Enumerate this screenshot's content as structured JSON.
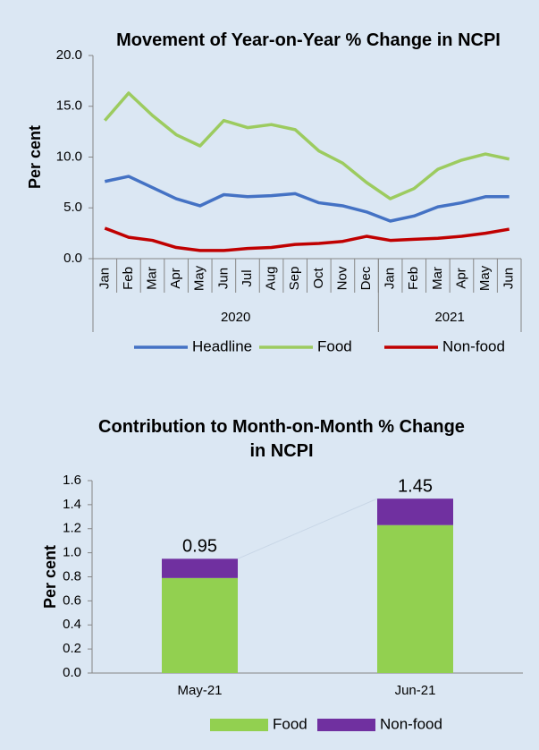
{
  "chart_data": [
    {
      "type": "line",
      "title": "Movement of Year-on-Year % Change in NCPI",
      "y_label": "Per cent",
      "categories": [
        "Jan",
        "Feb",
        "Mar",
        "Apr",
        "May",
        "Jun",
        "Jul",
        "Aug",
        "Sep",
        "Oct",
        "Nov",
        "Dec",
        "Jan",
        "Feb",
        "Mar",
        "Apr",
        "May",
        "Jun"
      ],
      "category_groups": [
        {
          "label": "2020",
          "size": 12
        },
        {
          "label": "2021",
          "size": 6
        }
      ],
      "series": [
        {
          "name": "Headline",
          "color": "#4472c4",
          "values": [
            7.6,
            8.1,
            7.0,
            5.9,
            5.2,
            6.3,
            6.1,
            6.2,
            6.4,
            5.5,
            5.2,
            4.6,
            3.7,
            4.2,
            5.1,
            5.5,
            6.1,
            6.1
          ]
        },
        {
          "name": "Food",
          "color": "#9ccb5f",
          "values": [
            13.6,
            16.3,
            14.1,
            12.2,
            11.1,
            13.6,
            12.9,
            13.2,
            12.7,
            10.6,
            9.4,
            7.5,
            5.9,
            6.9,
            8.8,
            9.7,
            10.3,
            9.8
          ]
        },
        {
          "name": "Non-food",
          "color": "#c00000",
          "values": [
            3.0,
            2.1,
            1.8,
            1.1,
            0.8,
            0.8,
            1.0,
            1.1,
            1.4,
            1.5,
            1.7,
            2.2,
            1.8,
            1.9,
            2.0,
            2.2,
            2.5,
            2.9
          ]
        }
      ],
      "ylim": [
        0,
        20
      ],
      "yticks": [
        {
          "value": 0,
          "label": "0.0"
        },
        {
          "value": 5,
          "label": "5.0"
        },
        {
          "value": 10,
          "label": "10.0"
        },
        {
          "value": 15,
          "label": "15.0"
        },
        {
          "value": 20,
          "label": "20.0"
        }
      ],
      "legend": "bottom"
    },
    {
      "type": "bar",
      "stacked": true,
      "title": "Contribution to Month-on-Month % Change in NCPI",
      "y_label": "Per cent",
      "categories": [
        "May-21",
        "Jun-21"
      ],
      "series": [
        {
          "name": "Food",
          "color": "#92d050",
          "values": [
            0.79,
            1.23
          ]
        },
        {
          "name": "Non-food",
          "color": "#7030a0",
          "values": [
            0.16,
            0.22
          ]
        }
      ],
      "totals": [
        0.95,
        1.45
      ],
      "ylim": [
        0,
        1.6
      ],
      "yticks": [
        {
          "value": 0,
          "label": "0.0"
        },
        0.2,
        0.4,
        0.6,
        0.8,
        {
          "value": 1,
          "label": "1.0"
        },
        1.2,
        1.4,
        1.6
      ],
      "legend": "bottom"
    }
  ]
}
